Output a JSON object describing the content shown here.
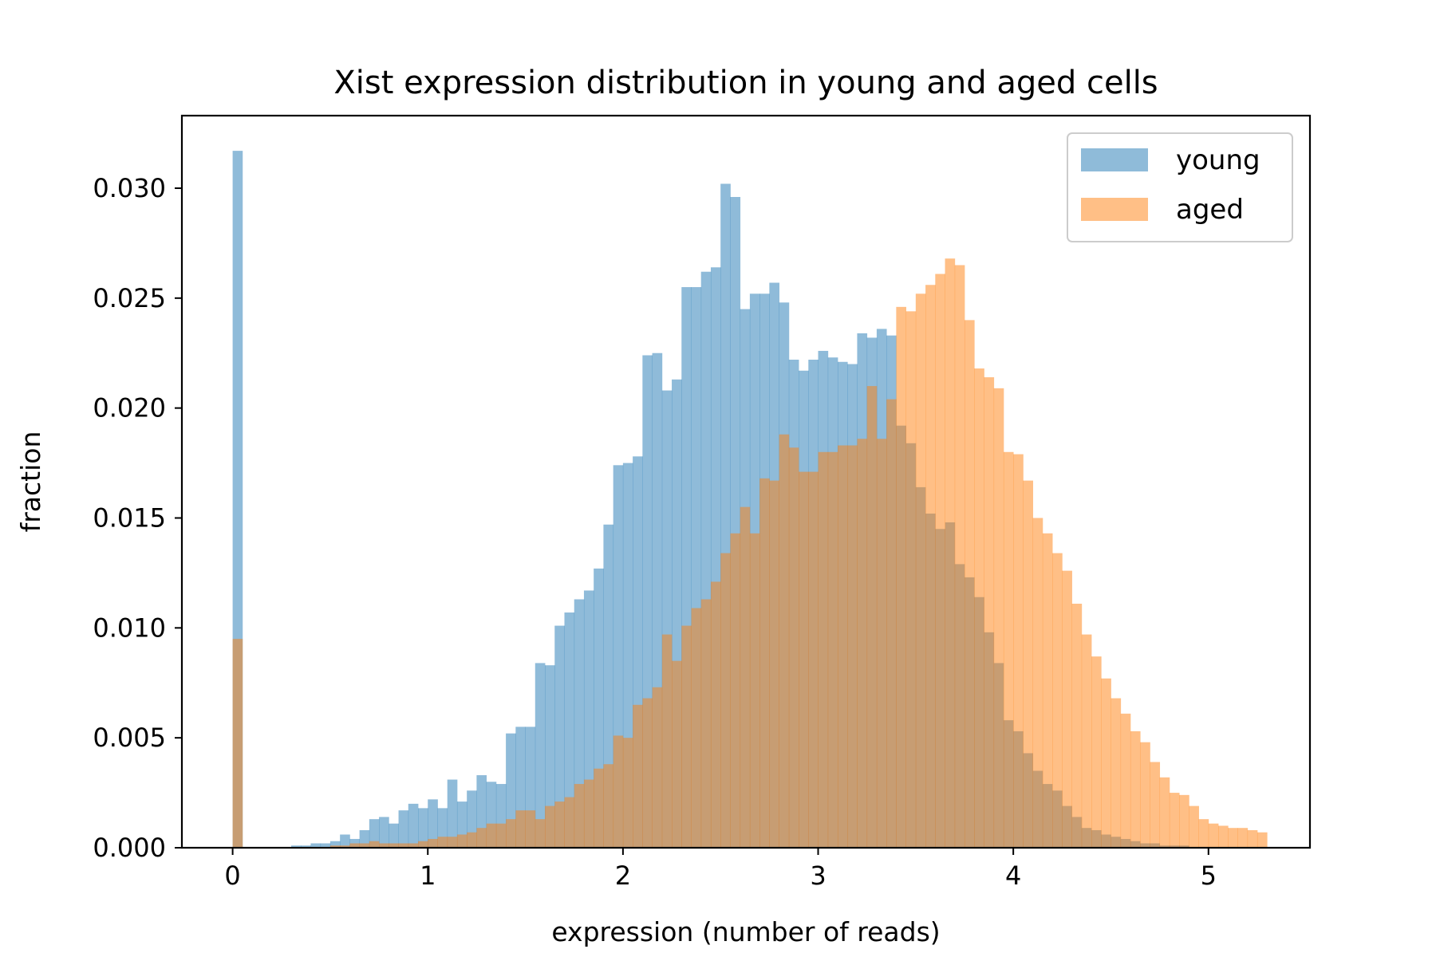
{
  "chart_data": {
    "type": "histogram",
    "title": "Xist expression distribution in young and aged cells",
    "xlabel": "expression (number of reads)",
    "ylabel": "fraction",
    "xlim": [
      -0.26,
      5.52
    ],
    "ylim": [
      0,
      0.0333
    ],
    "xticks": [
      0,
      1,
      2,
      3,
      4,
      5
    ],
    "xtick_labels": [
      "0",
      "1",
      "2",
      "3",
      "4",
      "5"
    ],
    "yticks": [
      0.0,
      0.005,
      0.01,
      0.015,
      0.02,
      0.025,
      0.03
    ],
    "ytick_labels": [
      "0.000",
      "0.005",
      "0.010",
      "0.015",
      "0.020",
      "0.025",
      "0.030"
    ],
    "grid": false,
    "legend_position": "top-right",
    "bins": {
      "start": 0.0,
      "width": 0.05,
      "count": 106
    },
    "series": [
      {
        "name": "young",
        "color": "#1f77b4",
        "opacity": 0.5,
        "values": [
          0.0317,
          0,
          0,
          0,
          0,
          0,
          0.0001,
          0.0001,
          0.0002,
          0.0002,
          0.0003,
          0.0006,
          0.0004,
          0.0008,
          0.0013,
          0.0014,
          0.0011,
          0.0017,
          0.002,
          0.0018,
          0.0022,
          0.0018,
          0.0031,
          0.0021,
          0.0026,
          0.0033,
          0.003,
          0.0029,
          0.0052,
          0.0055,
          0.0055,
          0.0084,
          0.0083,
          0.0101,
          0.0107,
          0.0113,
          0.0117,
          0.0127,
          0.0147,
          0.0174,
          0.0175,
          0.0178,
          0.0224,
          0.0225,
          0.0208,
          0.0213,
          0.0255,
          0.0255,
          0.0262,
          0.0264,
          0.0302,
          0.0296,
          0.0245,
          0.0252,
          0.0252,
          0.0257,
          0.0248,
          0.0222,
          0.0217,
          0.0222,
          0.0226,
          0.0223,
          0.0221,
          0.022,
          0.0234,
          0.0232,
          0.0236,
          0.0233,
          0.0192,
          0.0184,
          0.0164,
          0.0152,
          0.0145,
          0.0148,
          0.0129,
          0.0123,
          0.0114,
          0.0098,
          0.0084,
          0.0058,
          0.0053,
          0.0043,
          0.0035,
          0.0029,
          0.0026,
          0.0019,
          0.0014,
          0.0009,
          0.0008,
          0.0006,
          0.0005,
          0.0004,
          0.0003,
          0.0002,
          0.0002,
          0.0001,
          0.0001,
          0.0001,
          0,
          0,
          0,
          0,
          0,
          0,
          0,
          0
        ]
      },
      {
        "name": "aged",
        "color": "#ff7f0e",
        "opacity": 0.5,
        "values": [
          0.0095,
          0,
          0,
          0,
          0,
          0,
          0,
          0,
          0,
          0,
          0.0001,
          0.0001,
          0.0002,
          0.0002,
          0.0003,
          0.0002,
          0.0002,
          0.0002,
          0.0002,
          0.0003,
          0.0004,
          0.0005,
          0.0005,
          0.0006,
          0.0007,
          0.0009,
          0.0011,
          0.0011,
          0.0013,
          0.0017,
          0.0017,
          0.0013,
          0.0019,
          0.0021,
          0.0023,
          0.0029,
          0.0031,
          0.0036,
          0.0038,
          0.0051,
          0.005,
          0.0065,
          0.0068,
          0.0073,
          0.0097,
          0.0085,
          0.0101,
          0.0109,
          0.0113,
          0.0121,
          0.0134,
          0.0143,
          0.0155,
          0.0143,
          0.0168,
          0.0167,
          0.0188,
          0.0182,
          0.0171,
          0.0171,
          0.018,
          0.018,
          0.0183,
          0.0183,
          0.0186,
          0.021,
          0.0186,
          0.0204,
          0.0246,
          0.0244,
          0.0252,
          0.0256,
          0.0261,
          0.0268,
          0.0265,
          0.024,
          0.0218,
          0.0214,
          0.0209,
          0.018,
          0.0179,
          0.0167,
          0.015,
          0.0143,
          0.0134,
          0.0126,
          0.0111,
          0.0097,
          0.0087,
          0.0077,
          0.0068,
          0.0061,
          0.0053,
          0.0048,
          0.0039,
          0.0032,
          0.0025,
          0.0024,
          0.0019,
          0.0013,
          0.0011,
          0.001,
          0.0009,
          0.0009,
          0.0008,
          0.0007
        ]
      }
    ]
  }
}
